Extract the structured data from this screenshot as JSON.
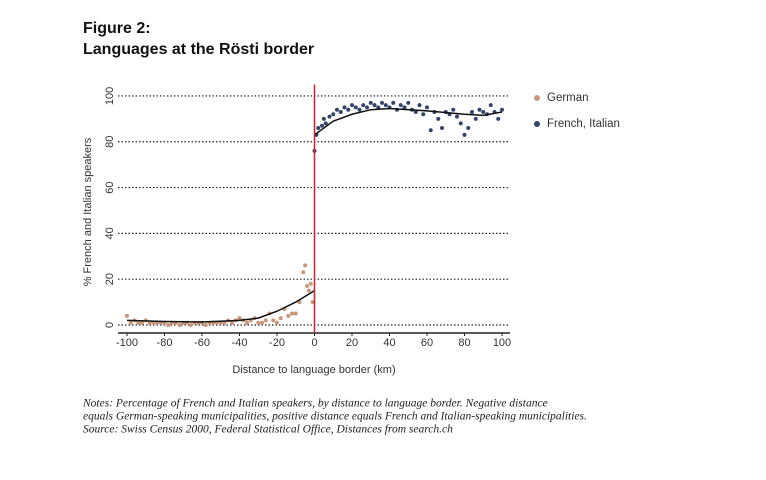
{
  "chart_data": {
    "type": "scatter",
    "title": "Figure 2:",
    "subtitle": "Languages at the Rösti border",
    "x_label": "Distance to language border (km)",
    "y_label": "% French and Italian speakers",
    "notes": [
      "Notes: Percentage of French and Italian speakers, by distance to language border. Negative distance",
      "equals German-speaking municipalities, positive distance equals French and Italian-speaking municipalities.",
      "Source: Swiss Census 2000, Federal Statistical Office, Distances from search.ch"
    ],
    "xlim": [
      -100,
      100
    ],
    "ylim": [
      -3.5,
      105
    ],
    "xticks": [
      -100,
      -80,
      -60,
      -40,
      -20,
      0,
      20,
      40,
      60,
      80,
      100
    ],
    "yticks": [
      0,
      20,
      40,
      60,
      80,
      100
    ],
    "grid": true,
    "legend": "right",
    "vline": {
      "value": 0,
      "color": "#d0202e"
    },
    "series": [
      {
        "name": "German",
        "color": "#c9967a",
        "x": [
          -100,
          -98,
          -96,
          -94,
          -92,
          -90,
          -88,
          -86,
          -84,
          -82,
          -80,
          -78,
          -76,
          -74,
          -72,
          -70,
          -68,
          -66,
          -64,
          -62,
          -60,
          -58,
          -56,
          -54,
          -52,
          -50,
          -48,
          -46,
          -44,
          -42,
          -40,
          -38,
          -36,
          -34,
          -32,
          -30,
          -28,
          -26,
          -24,
          -22,
          -20,
          -18,
          -16,
          -14,
          -12,
          -10,
          -8,
          -6,
          -5,
          -4,
          -3,
          -2,
          -1
        ],
        "values": [
          4,
          1,
          2,
          1,
          1,
          2,
          1,
          1,
          1,
          1,
          1,
          0,
          1,
          1,
          0,
          1,
          1,
          0,
          1,
          1,
          1,
          0,
          1,
          1,
          1,
          1,
          1,
          2,
          1,
          2,
          3,
          2,
          1,
          2,
          3,
          1,
          1,
          2,
          5,
          2,
          1,
          3,
          7,
          4,
          5,
          5,
          10,
          23,
          26,
          17,
          15,
          18,
          10
        ]
      },
      {
        "name": "French, Italian",
        "color": "#34456a",
        "x": [
          0,
          1,
          2,
          4,
          5,
          6,
          8,
          10,
          12,
          14,
          16,
          18,
          20,
          22,
          24,
          26,
          28,
          30,
          32,
          34,
          36,
          38,
          40,
          42,
          44,
          46,
          48,
          50,
          52,
          54,
          56,
          58,
          60,
          62,
          64,
          66,
          68,
          70,
          72,
          74,
          76,
          78,
          80,
          82,
          84,
          86,
          88,
          90,
          92,
          94,
          96,
          98,
          100
        ],
        "values": [
          76,
          83,
          86,
          87,
          90,
          88,
          91,
          92,
          94,
          93,
          95,
          94,
          96,
          95,
          94,
          96,
          95,
          97,
          96,
          95,
          97,
          96,
          95,
          97,
          94,
          96,
          95,
          97,
          94,
          93,
          96,
          92,
          95,
          85,
          93,
          90,
          86,
          93,
          92,
          94,
          91,
          88,
          83,
          86,
          93,
          90,
          94,
          93,
          92,
          96,
          93,
          90,
          94
        ]
      }
    ],
    "fits": [
      {
        "color": "#111111",
        "x": [
          -100,
          -80,
          -60,
          -40,
          -30,
          -20,
          -10,
          0
        ],
        "values": [
          2,
          1.5,
          1.3,
          2,
          3,
          6,
          10,
          15
        ]
      },
      {
        "color": "#111111",
        "x": [
          0,
          10,
          20,
          30,
          40,
          60,
          80,
          90,
          100
        ],
        "values": [
          83,
          89,
          92,
          94,
          94.5,
          93.5,
          92,
          91.5,
          93
        ]
      }
    ]
  }
}
